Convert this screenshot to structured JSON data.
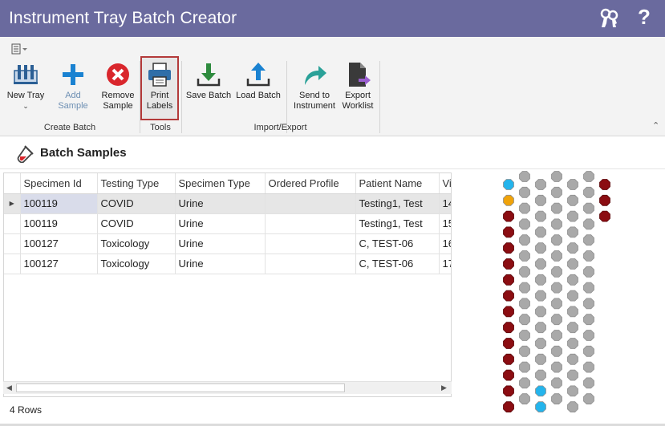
{
  "window": {
    "title": "Instrument Tray Batch Creator",
    "icons": [
      "keys-icon",
      "help-icon"
    ],
    "help_glyph": "?"
  },
  "ribbon": {
    "groups": [
      {
        "label": "Create Batch"
      },
      {
        "label": "Tools"
      },
      {
        "label": "Import/Export"
      }
    ],
    "buttons": {
      "new_tray": {
        "line1": "New Tray",
        "icon": "tube-rack-icon"
      },
      "add_sample": {
        "line1": "Add Sample",
        "icon": "plus-icon",
        "disabled": true
      },
      "remove_sample": {
        "line1": "Remove",
        "line2": "Sample",
        "icon": "remove-circle-icon"
      },
      "print_labels": {
        "line1": "Print",
        "line2": "Labels",
        "icon": "printer-icon",
        "selected": true
      },
      "save_batch": {
        "line1": "Save Batch",
        "icon": "download-icon"
      },
      "load_batch": {
        "line1": "Load Batch",
        "icon": "upload-icon"
      },
      "send_to_instrument": {
        "line1": "Send to",
        "line2": "Instrument",
        "icon": "share-arrow-icon"
      },
      "export_worklist": {
        "line1": "Export",
        "line2": "Worklist",
        "icon": "export-file-icon"
      }
    },
    "colors": {
      "accent": "#1a82d1",
      "remove": "#d9262c",
      "save": "#2e8b3e",
      "send": "#2aa198"
    }
  },
  "section": {
    "title": "Batch Samples",
    "icon": "test-tube-icon"
  },
  "grid": {
    "columns": [
      "Specimen Id",
      "Testing Type",
      "Specimen Type",
      "Ordered Profile",
      "Patient Name",
      "Vi"
    ],
    "rows": [
      {
        "specimen_id": "100119",
        "testing_type": "COVID",
        "specimen_type": "Urine",
        "ordered_profile": "",
        "patient_name": "Testing1, Test",
        "vi": "14",
        "selected": true
      },
      {
        "specimen_id": "100119",
        "testing_type": "COVID",
        "specimen_type": "Urine",
        "ordered_profile": "",
        "patient_name": "Testing1, Test",
        "vi": "15"
      },
      {
        "specimen_id": "100127",
        "testing_type": "Toxicology",
        "specimen_type": "Urine",
        "ordered_profile": "",
        "patient_name": "C, TEST-06",
        "vi": "16"
      },
      {
        "specimen_id": "100127",
        "testing_type": "Toxicology",
        "specimen_type": "Urine",
        "ordered_profile": "",
        "patient_name": "C, TEST-06",
        "vi": "17"
      }
    ]
  },
  "status": {
    "row_count": "4 Rows"
  },
  "tray": {
    "columns": 7,
    "colors": {
      "empty": "#a9a9a9",
      "filled": "#8b0d12",
      "blue": "#24b4ec",
      "orange": "#f0a30a"
    },
    "col_states": [
      [
        "blue",
        "orange",
        "filled",
        "filled",
        "filled",
        "filled",
        "filled",
        "filled",
        "filled",
        "filled",
        "filled",
        "filled",
        "filled",
        "filled",
        "filled"
      ],
      [
        "empty",
        "empty",
        "empty",
        "empty",
        "empty",
        "empty",
        "empty",
        "empty",
        "empty",
        "empty",
        "empty",
        "empty",
        "empty",
        "empty",
        "empty"
      ],
      [
        "empty",
        "empty",
        "empty",
        "empty",
        "empty",
        "empty",
        "empty",
        "empty",
        "empty",
        "empty",
        "empty",
        "empty",
        "empty",
        "blue",
        "blue"
      ],
      [
        "empty",
        "empty",
        "empty",
        "empty",
        "empty",
        "empty",
        "empty",
        "empty",
        "empty",
        "empty",
        "empty",
        "empty",
        "empty",
        "empty",
        "empty"
      ],
      [
        "empty",
        "empty",
        "empty",
        "empty",
        "empty",
        "empty",
        "empty",
        "empty",
        "empty",
        "empty",
        "empty",
        "empty",
        "empty",
        "empty",
        "empty"
      ],
      [
        "empty",
        "empty",
        "empty",
        "empty",
        "empty",
        "empty",
        "empty",
        "empty",
        "empty",
        "empty",
        "empty",
        "empty",
        "empty",
        "empty",
        "empty"
      ],
      [
        "filled",
        "filled",
        "filled"
      ]
    ]
  }
}
